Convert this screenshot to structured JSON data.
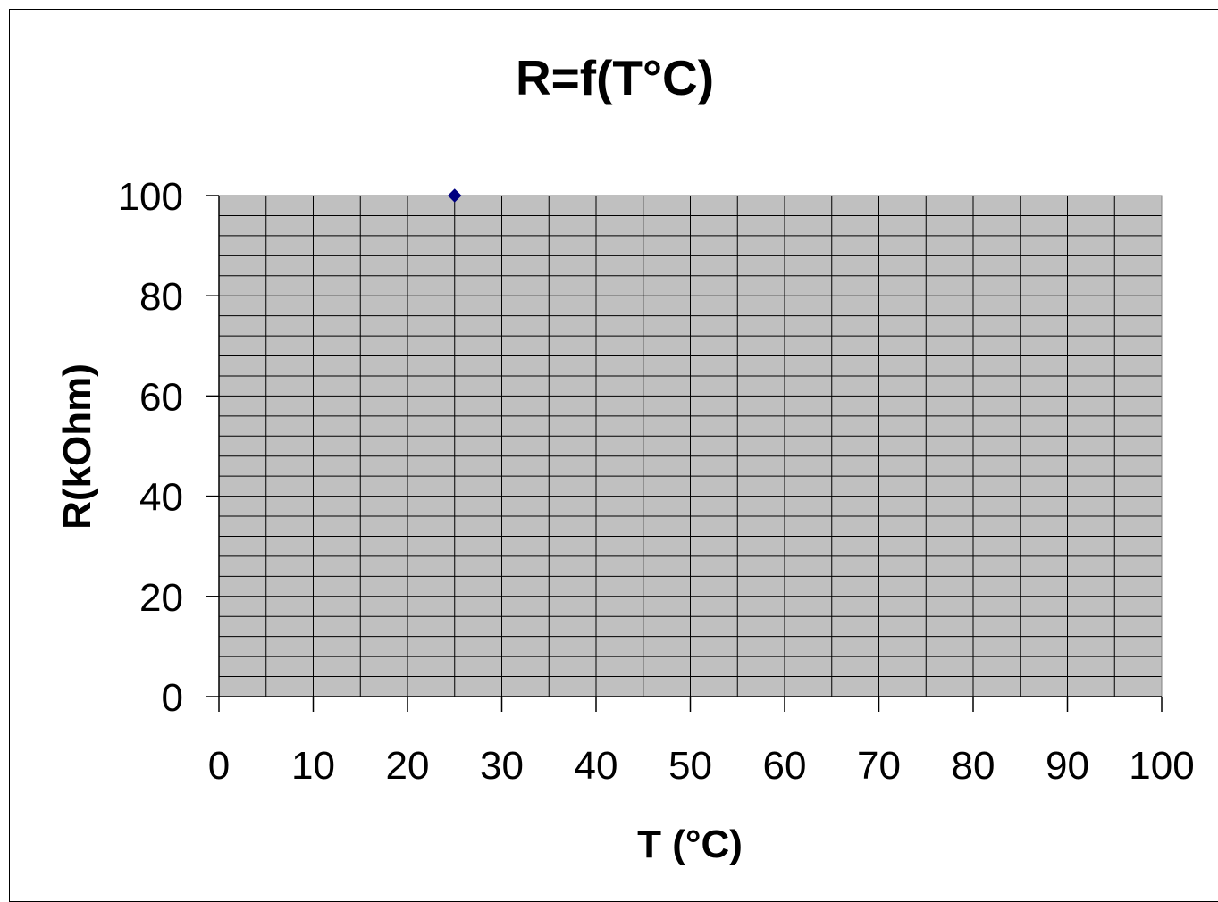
{
  "chart_data": {
    "type": "scatter",
    "title": "R=f(T°C)",
    "xlabel": "T (°C)",
    "ylabel": "R(kOhm)",
    "xlim": [
      0,
      100
    ],
    "ylim": [
      0,
      100
    ],
    "x_ticks": [
      0,
      10,
      20,
      30,
      40,
      50,
      60,
      70,
      80,
      90,
      100
    ],
    "y_ticks": [
      0,
      20,
      40,
      60,
      80,
      100
    ],
    "x_minor_step": 5,
    "y_minor_step": 4,
    "grid": true,
    "legend": "none",
    "plot_background": "#c0c0c0",
    "grid_color": "#000000",
    "marker_color": "#000080",
    "marker": "diamond",
    "series": [
      {
        "points": [
          {
            "x": 25,
            "y": 100
          }
        ]
      }
    ]
  }
}
